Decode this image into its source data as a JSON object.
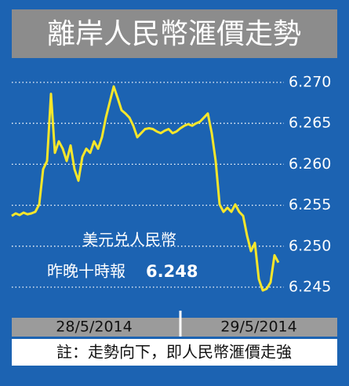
{
  "chart_data": {
    "type": "line",
    "title": "離岸人民幣滙價走勢",
    "series": [
      {
        "name": null,
        "color": "#f6e62b",
        "values": [
          6.2537,
          6.254,
          6.2538,
          6.2541,
          6.2539,
          6.254,
          6.2542,
          6.2551,
          6.2594,
          6.2604,
          6.2686,
          6.2614,
          6.2628,
          6.2619,
          6.2604,
          6.2623,
          6.2594,
          6.258,
          6.2609,
          6.2619,
          6.2614,
          6.2628,
          6.2619,
          6.2633,
          6.2657,
          6.2676,
          6.2695,
          6.2681,
          6.2666,
          6.2662,
          6.2657,
          6.2647,
          6.2633,
          6.2638,
          6.2643,
          6.2644,
          6.2643,
          6.264,
          6.2638,
          6.2641,
          6.2643,
          6.2638,
          6.264,
          6.2644,
          6.2647,
          6.2649,
          6.2647,
          6.265,
          6.2652,
          6.2657,
          6.2662,
          6.2638,
          6.2604,
          6.2551,
          6.2542,
          6.2547,
          6.2542,
          6.2551,
          6.2542,
          6.2537,
          6.2513,
          6.2494,
          6.2504,
          6.246,
          6.2446,
          6.2448,
          6.2456,
          6.2489,
          6.248
        ]
      }
    ],
    "date_labels": [
      "28/5/2014",
      "29/5/2014"
    ],
    "ylim": [
      6.243,
      6.272
    ],
    "yticks": [
      {
        "value": 6.27,
        "label": "6.270"
      },
      {
        "value": 6.265,
        "label": "6.265"
      },
      {
        "value": 6.26,
        "label": "6.260"
      },
      {
        "value": 6.255,
        "label": "6.255"
      },
      {
        "value": 6.25,
        "label": "6.250"
      },
      {
        "value": 6.245,
        "label": "6.245"
      }
    ],
    "grid": true,
    "annotations": [
      "美元兑人民幣",
      "昨晚十時報",
      "6.248"
    ],
    "note": "註：走勢向下，即人民幣滙價走強"
  }
}
